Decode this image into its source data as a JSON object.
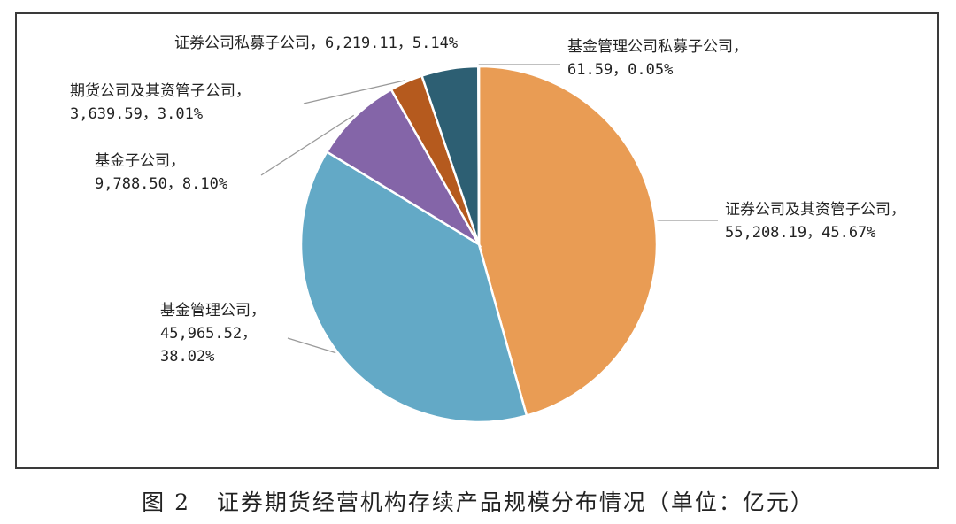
{
  "chart_data": {
    "type": "pie",
    "unit": "亿元",
    "slices": [
      {
        "label": "证券公司及其资管子公司",
        "value": 55208.19,
        "value_text": "55,208.19",
        "percent": 45.67,
        "percent_text": "45.67%",
        "color": "#E99C54"
      },
      {
        "label": "基金管理公司",
        "value": 45965.52,
        "value_text": "45,965.52",
        "percent": 38.02,
        "percent_text": "38.02%",
        "color": "#63A9C6"
      },
      {
        "label": "基金子公司",
        "value": 9788.5,
        "value_text": "9,788.50",
        "percent": 8.1,
        "percent_text": "8.10%",
        "color": "#8465A8"
      },
      {
        "label": "期货公司及其资管子公司",
        "value": 3639.59,
        "value_text": "3,639.59",
        "percent": 3.01,
        "percent_text": "3.01%",
        "color": "#B55A1E"
      },
      {
        "label": "证券公司私募子公司",
        "value": 6219.11,
        "value_text": "6,219.11",
        "percent": 5.14,
        "percent_text": "5.14%",
        "color": "#2D5F73"
      },
      {
        "label": "基金管理公司私募子公司",
        "value": 61.59,
        "value_text": "61.59",
        "percent": 0.05,
        "percent_text": "0.05%",
        "color": "#4A7F92"
      }
    ],
    "data_labels": [
      {
        "lines": [
          "证券公司及其资管子公司，",
          "55,208.19，45.67%"
        ]
      },
      {
        "lines": [
          "基金管理公司，",
          "45,965.52，",
          "38.02%"
        ]
      },
      {
        "lines": [
          "基金子公司，",
          "9,788.50，8.10%"
        ]
      },
      {
        "lines": [
          "期货公司及其资管子公司，",
          "3,639.59，3.01%"
        ]
      },
      {
        "lines": [
          "证券公司私募子公司，6,219.11，5.14%"
        ]
      },
      {
        "lines": [
          "基金管理公司私募子公司，",
          "61.59，0.05%"
        ]
      }
    ]
  },
  "caption": {
    "figure_number": "图 2",
    "title": "证券期货经营机构存续产品规模分布情况（单位：亿元）"
  }
}
